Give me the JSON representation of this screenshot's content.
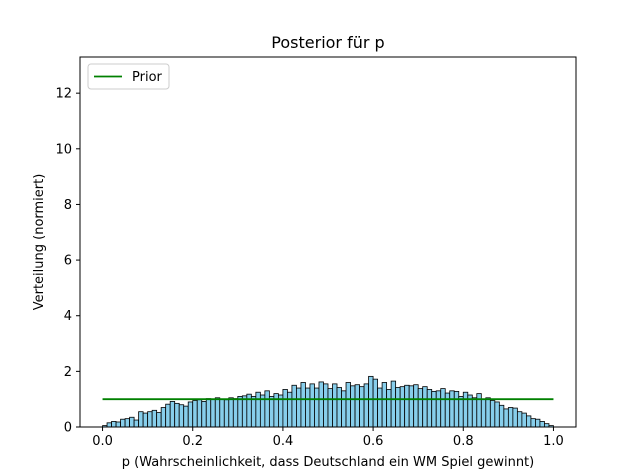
{
  "chart_data": {
    "type": "bar",
    "title": "Posterior für p",
    "xlabel": "p (Wahrscheinlichkeit, dass Deutschland ein WM Spiel gewinnt)",
    "ylabel": "Verteilung (normiert)",
    "xlim": [
      -0.05,
      1.05
    ],
    "ylim": [
      0,
      13.3
    ],
    "xticks": [
      0.0,
      0.2,
      0.4,
      0.6,
      0.8,
      1.0
    ],
    "xtick_labels": [
      "0.0",
      "0.2",
      "0.4",
      "0.6",
      "0.8",
      "1.0"
    ],
    "yticks": [
      0,
      2,
      4,
      6,
      8,
      10,
      12
    ],
    "ytick_labels": [
      "0",
      "2",
      "4",
      "6",
      "8",
      "10",
      "12"
    ],
    "grid": false,
    "legend": {
      "position": "top-left",
      "entries": [
        "Prior"
      ]
    },
    "histogram": {
      "name": "Posterior",
      "color": "#87CEEB",
      "edgecolor": "#000000",
      "bin_start": 0.0,
      "bin_width": 0.01,
      "values": [
        0.05,
        0.15,
        0.2,
        0.18,
        0.28,
        0.3,
        0.35,
        0.25,
        0.55,
        0.5,
        0.55,
        0.6,
        0.52,
        0.7,
        0.82,
        0.92,
        0.85,
        0.8,
        0.75,
        0.9,
        0.95,
        0.98,
        0.92,
        1.02,
        1.0,
        1.05,
        1.0,
        0.98,
        1.05,
        1.02,
        1.1,
        1.12,
        1.18,
        1.1,
        1.25,
        1.15,
        1.3,
        1.1,
        1.2,
        1.15,
        1.35,
        1.25,
        1.5,
        1.4,
        1.6,
        1.4,
        1.55,
        1.4,
        1.62,
        1.55,
        1.38,
        1.55,
        1.42,
        1.3,
        1.6,
        1.48,
        1.52,
        1.45,
        1.55,
        1.82,
        1.72,
        1.4,
        1.6,
        1.35,
        1.65,
        1.42,
        1.45,
        1.5,
        1.48,
        1.52,
        1.38,
        1.45,
        1.35,
        1.28,
        1.3,
        1.38,
        1.22,
        1.3,
        1.28,
        1.1,
        1.25,
        1.15,
        1.05,
        1.2,
        1.0,
        1.05,
        0.95,
        0.9,
        0.78,
        0.65,
        0.7,
        0.68,
        0.55,
        0.5,
        0.4,
        0.3,
        0.28,
        0.2,
        0.12,
        0.05
      ]
    },
    "series": [
      {
        "name": "Prior",
        "type": "line",
        "color": "#008000",
        "x": [
          0.0,
          1.0
        ],
        "y": [
          1.0,
          1.0
        ]
      }
    ]
  }
}
